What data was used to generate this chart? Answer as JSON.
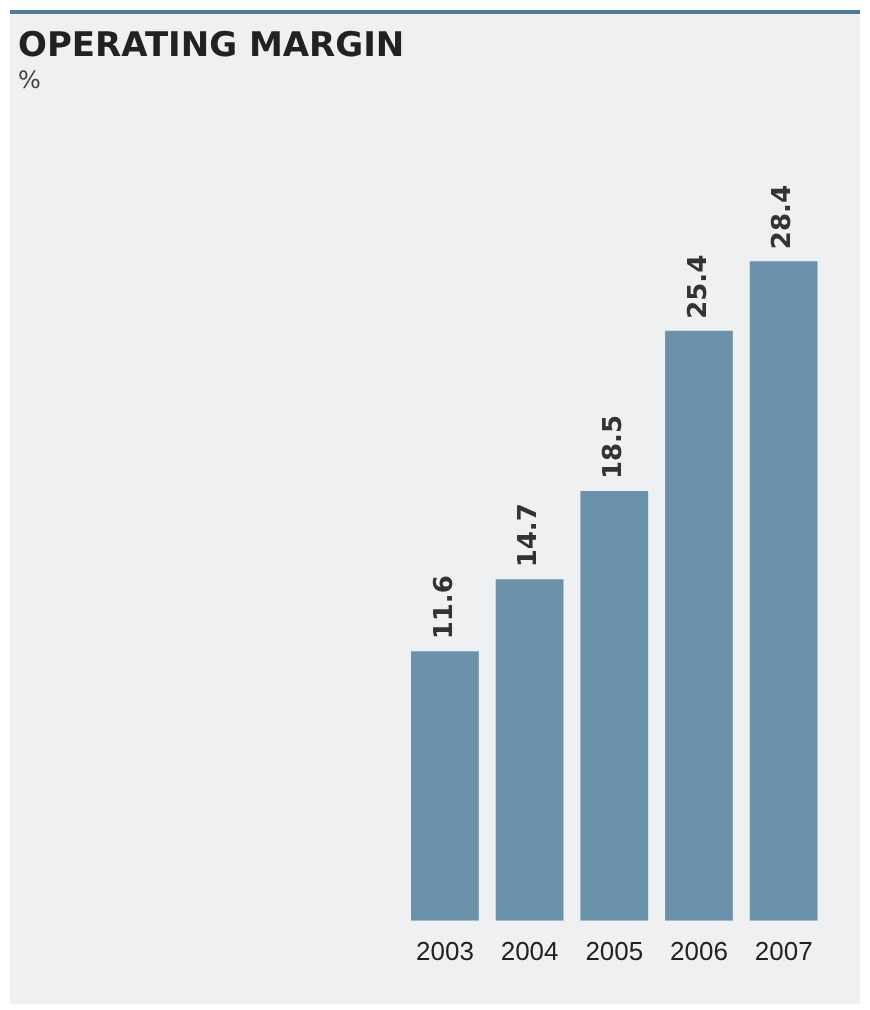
{
  "chart_data": {
    "type": "bar",
    "title": "OPERATING MARGIN",
    "subtitle": "%",
    "categories": [
      "2003",
      "2004",
      "2005",
      "2006",
      "2007"
    ],
    "values": [
      11.6,
      14.7,
      18.5,
      25.4,
      28.4
    ],
    "color": "#6b91ab",
    "data_labels": true,
    "grid": false,
    "legend": false
  }
}
